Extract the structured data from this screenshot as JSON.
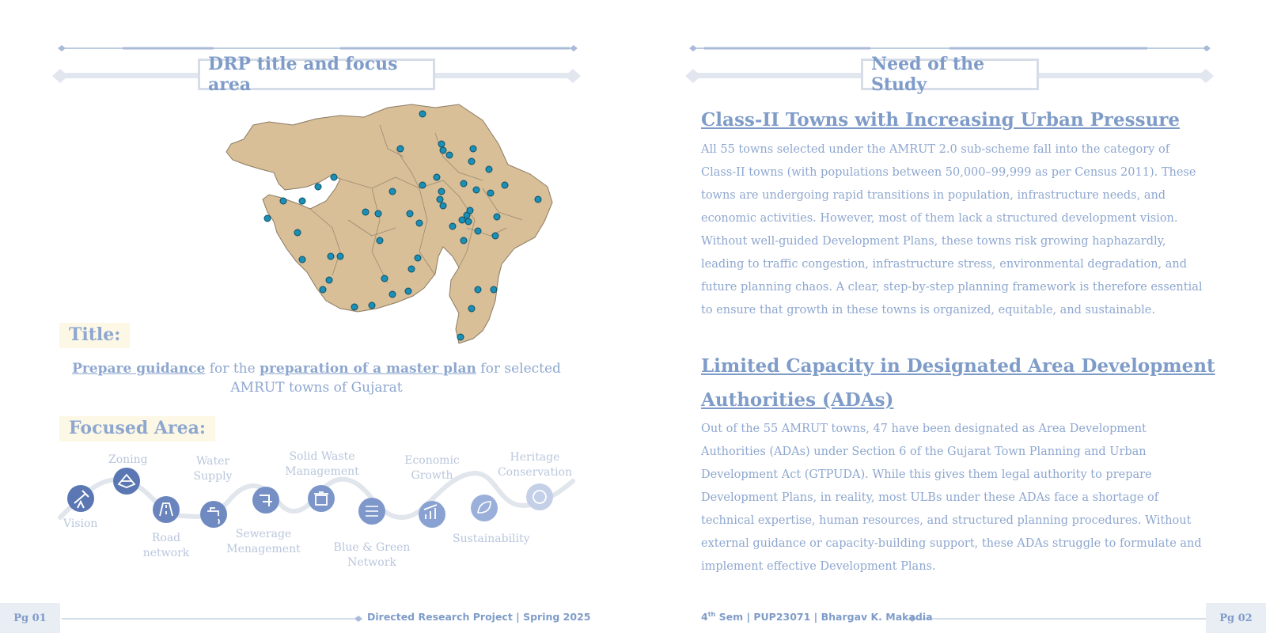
{
  "left_page": {
    "section_title": "DRP title and focus area",
    "title_label": "Title:",
    "title_part1": "Prepare guidance",
    "title_part2": " for the ",
    "title_part3": "preparation of a master plan",
    "title_part4": " for selected AMRUT towns of Gujarat",
    "focused_label": "Focused Area:",
    "focus_items": [
      {
        "label": "Vision",
        "icon": "telescope-icon"
      },
      {
        "label": "Zoning",
        "icon": "map-zoning-icon"
      },
      {
        "label": "Road network",
        "icon": "road-icon"
      },
      {
        "label": "Water Supply",
        "icon": "water-tap-icon"
      },
      {
        "label": "Sewerage Menagement",
        "icon": "pipe-icon"
      },
      {
        "label": "Solid Waste Management",
        "icon": "bin-icon"
      },
      {
        "label": "Blue & Green Network",
        "icon": "network-icon"
      },
      {
        "label": "Economic Growth",
        "icon": "growth-chart-icon"
      },
      {
        "label": "Sustainability",
        "icon": "leaf-icon"
      },
      {
        "label": "Heritage Conservation",
        "icon": "heritage-icon"
      }
    ],
    "map_icon": "gujarat-map-with-town-markers"
  },
  "right_page": {
    "section_title": "Need of the Study",
    "heading1": "Class-II Towns with Increasing Urban Pressure",
    "para1": "All 55 towns selected under the AMRUT 2.0 sub-scheme fall into the category of Class-II towns (with populations between 50,000–99,999 as per Census 2011). These towns are undergoing rapid transitions in population, infrastructure needs, and economic activities. However, most of them lack a structured development vision. Without well-guided Development Plans, these towns risk growing haphazardly, leading to traffic congestion, infrastructure stress, environmental degradation, and future planning chaos. A clear, step-by-step planning framework is therefore essential to ensure that growth in these towns is organized, equitable, and sustainable.",
    "heading2": "Limited Capacity in Designated Area Development Authorities (ADAs)",
    "para2": "Out of the 55 AMRUT towns, 47 have been designated as Area Development Authorities (ADAs) under Section 6 of the Gujarat Town Planning and Urban Development Act (GTPUDA). While this gives them legal authority to prepare Development Plans, in reality, most ULBs under these ADAs face a shortage of technical expertise, human resources, and structured planning procedures. Without external guidance or capacity-building support, these ADAs struggle to formulate and implement effective Development Plans."
  },
  "footer": {
    "pg_left": "Pg 01",
    "left_text": "Directed Research Project | Spring 2025",
    "right_text_sem": "4",
    "right_text_sup": "th",
    "right_text_rest": " Sem | PUP23071 | Bhargav K. Makadia",
    "pg_right": "Pg 02"
  },
  "colors": {
    "accent": "#7f9cc8",
    "light_accent": "#b9c6dc",
    "map_fill": "#d8bf98",
    "marker": "#1b8fb5",
    "highlight": "#fdf8e6"
  }
}
